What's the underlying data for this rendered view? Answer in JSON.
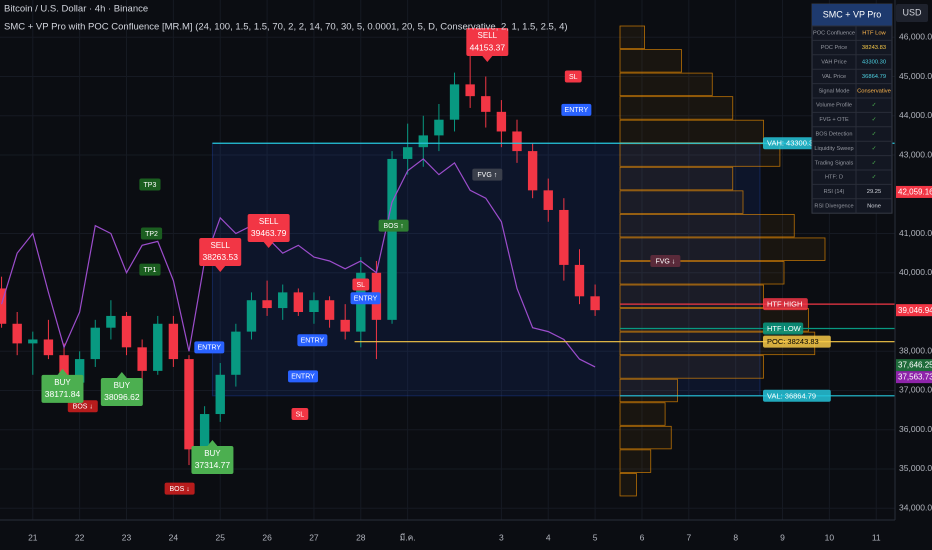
{
  "header": {
    "symbol": "Bitcoin / U.S. Dollar · 4h · Binance",
    "indicator": "SMC + VP Pro with POC Confluence [MR.M] (24, 100, 1.5, 1.5, 70, 2, 2, 14, 70, 30, 5, 0.0001, 20, 5, D, Conservative, 2, 1, 1.5, 2.5, 4)",
    "currency": "USD"
  },
  "chart_data": {
    "type": "candlestick",
    "open": [
      39600,
      38700,
      38200,
      38300,
      37900,
      37200,
      37800,
      38600,
      38900,
      38100,
      37500,
      38700,
      37800,
      35500,
      36400,
      37400,
      38500,
      39300,
      39100,
      39500,
      39000,
      39300,
      38800,
      38500,
      40000,
      38800,
      42900,
      43200,
      43500,
      43900,
      44800,
      44500,
      44100,
      43600,
      43100,
      42100,
      41600,
      40200,
      39400
    ],
    "high": [
      39900,
      39000,
      38500,
      38800,
      38200,
      38000,
      38800,
      39300,
      39000,
      38300,
      38900,
      38900,
      37900,
      36600,
      37700,
      38700,
      39500,
      39800,
      39700,
      39600,
      39500,
      39400,
      39200,
      40400,
      40300,
      43100,
      43800,
      44000,
      44300,
      45100,
      45700,
      45000,
      44400,
      43900,
      43300,
      42400,
      41900,
      40600,
      39700
    ],
    "low": [
      38600,
      37900,
      37400,
      37800,
      36900,
      36800,
      37600,
      38300,
      37900,
      37200,
      37400,
      37600,
      35100,
      35200,
      36200,
      37100,
      38300,
      38900,
      38800,
      38900,
      38700,
      38600,
      38300,
      38100,
      37800,
      38700,
      42500,
      42700,
      43100,
      43600,
      44200,
      43700,
      43200,
      42800,
      41900,
      41300,
      39800,
      39200,
      38900
    ],
    "close": [
      38700,
      38200,
      38300,
      37900,
      37200,
      37800,
      38600,
      38900,
      38100,
      37500,
      38700,
      37800,
      35500,
      36400,
      37400,
      38500,
      39300,
      39100,
      39500,
      39000,
      39300,
      38800,
      38500,
      40000,
      38800,
      42900,
      43200,
      43500,
      43900,
      44800,
      44500,
      44100,
      43600,
      43100,
      42100,
      41600,
      40200,
      39400,
      39047
    ],
    "up_color": "#089981",
    "down_color": "#f23645",
    "rsi_line": {
      "color": "#9c4dcc",
      "values": [
        39200,
        40500,
        41000,
        39500,
        38100,
        39000,
        41200,
        41000,
        40000,
        40700,
        40800,
        39800,
        38000,
        40300,
        41400,
        41000,
        41200,
        40900,
        40500,
        40700,
        40400,
        40300,
        40100,
        40300,
        40000,
        41800,
        42600,
        42900,
        42500,
        42800,
        42100,
        41900,
        41300,
        39600,
        38600,
        38500,
        38300,
        37800,
        37600
      ]
    },
    "xlim": [
      -0.1,
      57.2
    ],
    "ylim": [
      33700,
      46950
    ],
    "xticks": [
      {
        "value": 2,
        "label": "21"
      },
      {
        "value": 5,
        "label": "22"
      },
      {
        "value": 8,
        "label": "23"
      },
      {
        "value": 11,
        "label": "24"
      },
      {
        "value": 14,
        "label": "25"
      },
      {
        "value": 17,
        "label": "26"
      },
      {
        "value": 20,
        "label": "27"
      },
      {
        "value": 23,
        "label": "28"
      },
      {
        "value": 26,
        "label": "มี.ค."
      },
      {
        "value": 32,
        "label": "3"
      },
      {
        "value": 35,
        "label": "4"
      },
      {
        "value": 38,
        "label": "5"
      },
      {
        "value": 41,
        "label": "6"
      },
      {
        "value": 44,
        "label": "7"
      },
      {
        "value": 47,
        "label": "8"
      },
      {
        "value": 50,
        "label": "9"
      },
      {
        "value": 53,
        "label": "10"
      },
      {
        "value": 56,
        "label": "11"
      }
    ],
    "yticks": [
      {
        "value": 34000,
        "label": "34,000.00"
      },
      {
        "value": 35000,
        "label": "35,000.00"
      },
      {
        "value": 36000,
        "label": "36,000.00"
      },
      {
        "value": 37000,
        "label": "37,000.00"
      },
      {
        "value": 38000,
        "label": "38,000.00"
      },
      {
        "value": 40000,
        "label": "40,000.00"
      },
      {
        "value": 41000,
        "label": "41,000.00"
      },
      {
        "value": 43000,
        "label": "43,000.00"
      },
      {
        "value": 44000,
        "label": "44,000.00"
      },
      {
        "value": 45000,
        "label": "45,000.00"
      },
      {
        "value": 46000,
        "label": "46,000.00"
      }
    ],
    "grid": true,
    "price_badges": [
      {
        "value": 42059.16,
        "label": "42,059.16",
        "color": "#f23645"
      },
      {
        "value": 39046.94,
        "label": "39,046.94",
        "color": "#f23645"
      },
      {
        "value": 37646.25,
        "label": "37,646.25",
        "color": "#1e6b3a"
      },
      {
        "value": 37563.73,
        "label": "37,563.73",
        "color": "#8e24aa"
      }
    ],
    "volume_profile": {
      "levels": [
        45700,
        45100,
        44500,
        43900,
        43300,
        42700,
        42100,
        41500,
        40900,
        40300,
        39700,
        39100,
        38500,
        37900,
        37300,
        36700,
        36100,
        35500,
        34900,
        34300
      ],
      "row_height": 600,
      "volumes": [
        12,
        30,
        45,
        55,
        70,
        78,
        55,
        60,
        85,
        100,
        80,
        70,
        92,
        95,
        70,
        28,
        22,
        25,
        15,
        8
      ],
      "color": "#ff9800"
    },
    "levels": [
      {
        "label": "VAH: 43300.30",
        "value": 43300.3,
        "color": "#26c6da",
        "from": 13.5
      },
      {
        "label": "HTF HIGH",
        "value": 39200,
        "color": "#f23645",
        "from": 39.6
      },
      {
        "label": "HTF LOW",
        "value": 38580,
        "color": "#089981",
        "from": 39.6
      },
      {
        "label": "POC: 38243.83",
        "value": 38243.83,
        "color": "#f7c948",
        "from": 22.6
      },
      {
        "label": "VAL: 36864.79",
        "value": 36864.79,
        "color": "#26c6da",
        "from": 39.6
      }
    ],
    "signals": [
      {
        "label": "SELL",
        "price_text": "44153.37",
        "index": 31.1,
        "value": 45370,
        "color": "#f23645"
      },
      {
        "label": "SELL",
        "price_text": "39463.79",
        "index": 17.1,
        "value": 40632,
        "color": "#f23645"
      },
      {
        "label": "SELL",
        "price_text": "38263.53",
        "index": 14,
        "value": 40020,
        "color": "#f23645"
      },
      {
        "label": "BUY",
        "price_text": "38096.62",
        "index": 7.7,
        "value": 37472,
        "color": "#4caf50"
      },
      {
        "label": "BUY",
        "price_text": "37314.77",
        "index": 13.5,
        "value": 35740,
        "color": "#4caf50"
      },
      {
        "label": "BUY",
        "price_text": "38171.84",
        "index": 3.9,
        "value": 37550,
        "color": "#4caf50"
      }
    ],
    "tags": [
      {
        "text": "SL",
        "index": 36.6,
        "value": 45000,
        "color": "#f23645"
      },
      {
        "text": "ENTRY",
        "index": 36.8,
        "value": 44150,
        "color": "#2962ff"
      },
      {
        "text": "BOS ↑",
        "index": 25.1,
        "value": 41200,
        "color": "#2e7d32"
      },
      {
        "text": "BOS ↓",
        "index": 11.4,
        "value": 34500,
        "color": "#b71c1c"
      },
      {
        "text": "BOS ↓",
        "index": 5.2,
        "value": 36600,
        "color": "#b71c1c"
      },
      {
        "text": "ENTRY",
        "index": 19.9,
        "value": 38280,
        "color": "#2962ff"
      },
      {
        "text": "ENTRY",
        "index": 19.3,
        "value": 37360,
        "color": "#2962ff"
      },
      {
        "text": "ENTRY",
        "index": 13.3,
        "value": 38100,
        "color": "#2962ff"
      },
      {
        "text": "ENTRY",
        "index": 23.3,
        "value": 39350,
        "color": "#2962ff"
      },
      {
        "text": "SL",
        "index": 23,
        "value": 39700,
        "color": "#f23645"
      },
      {
        "text": "SL",
        "index": 19.1,
        "value": 36400,
        "color": "#f23645"
      },
      {
        "text": "TP3",
        "index": 9.5,
        "value": 42250,
        "color": "#1b5e20"
      },
      {
        "text": "TP2",
        "index": 9.6,
        "value": 41000,
        "color": "#1b5e20"
      },
      {
        "text": "TP1",
        "index": 9.5,
        "value": 40080,
        "color": "#1b5e20"
      },
      {
        "text": "FVG ↑",
        "index": 31.1,
        "value": 42500,
        "color": "#3a3f4b"
      },
      {
        "text": "FVG ↓",
        "index": 42.5,
        "value": 40300,
        "color": "#5a2a3a"
      }
    ]
  },
  "table": {
    "title": "SMC + VP Pro",
    "rows": [
      [
        "POC Confluence",
        "HTF Low"
      ],
      [
        "POC Price",
        "38243.83"
      ],
      [
        "VAH Price",
        "43300.30"
      ],
      [
        "VAL Price",
        "36864.79"
      ],
      [
        "Signal Mode",
        "Conservative"
      ],
      [
        "Volume Profile",
        "✓"
      ],
      [
        "FVG + OTE",
        "✓"
      ],
      [
        "BOS Detection",
        "✓"
      ],
      [
        "Liquidity Sweep",
        "✓"
      ],
      [
        "Trading Signals",
        "✓"
      ],
      [
        "HTF: D",
        "✓"
      ],
      [
        "RSI (14)",
        "29.25"
      ],
      [
        "RSI Divergence",
        "None"
      ]
    ]
  }
}
